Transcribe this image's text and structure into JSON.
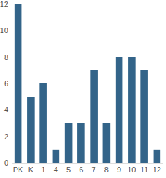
{
  "chart_data": {
    "type": "bar",
    "categories": [
      "PK",
      "K",
      "1",
      "4",
      "5",
      "6",
      "7",
      "8",
      "9",
      "10",
      "11",
      "12"
    ],
    "values": [
      12,
      5,
      6,
      1,
      3,
      3,
      7,
      3,
      8,
      8,
      7,
      1
    ],
    "color": "#336489",
    "ylim": [
      0,
      12
    ],
    "yticks": [
      0,
      2,
      4,
      6,
      8,
      10,
      12
    ],
    "grid": false
  }
}
